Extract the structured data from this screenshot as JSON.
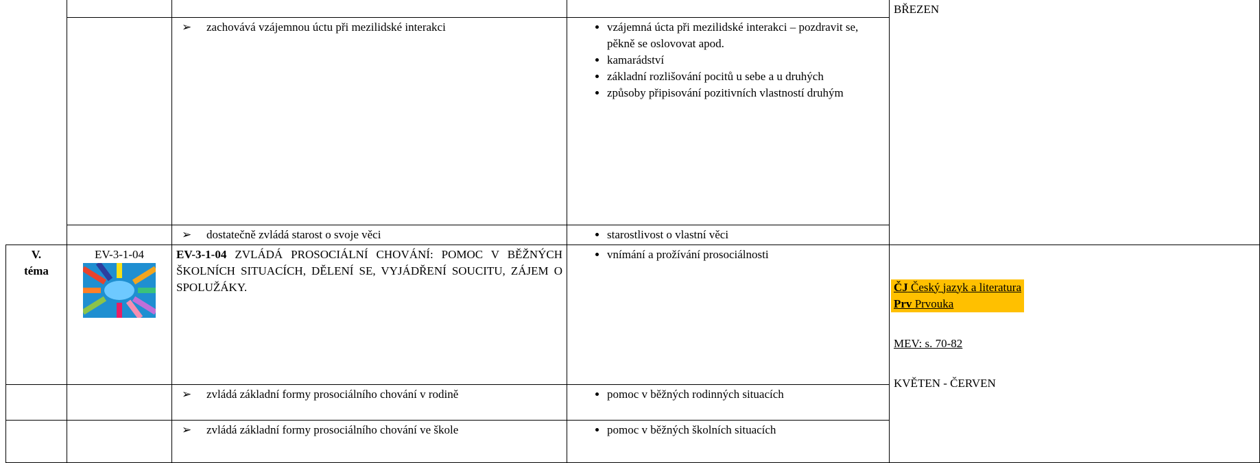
{
  "previous_months": "BŘEZEN",
  "rows": [
    {
      "outcome": "zachovává vzájemnou úctu při mezilidské interakci",
      "topics": [
        "vzájemná úcta při mezilidské interakci – pozdravit se, pěkně se oslovovat apod.",
        "kamarádství",
        "základní rozlišování pocitů u sebe a u druhých",
        "způsoby připisování pozitivních vlastností druhým"
      ]
    },
    {
      "outcome": "dostatečně zvládá starost o svoje věci",
      "topics": [
        "starostlivost o vlastní věci"
      ]
    }
  ],
  "theme": {
    "number": "V.",
    "word": "téma",
    "code": "EV-3-1-04",
    "outcome_code": "EV-3-1-04",
    "outcome_text": "ZVLÁDÁ PROSOCIÁLNÍ CHOVÁNÍ: POMOC V BĚŽNÝCH ŠKOLNÍCH SITUACÍCH, DĚLENÍ SE, VYJÁDŘENÍ SOUCITU, ZÁJEM O SPOLUŽÁKY.",
    "topics": [
      "vnímání a prožívání prosociálnosti"
    ],
    "subrows": [
      {
        "outcome": "zvládá základní formy prosociálního chování v rodině",
        "topics": [
          "pomoc v běžných rodinných situacích"
        ]
      },
      {
        "outcome": "zvládá základní formy prosociálního chování ve škole",
        "topics": [
          "pomoc v běžných školních situacích"
        ]
      }
    ],
    "links": [
      {
        "abbr": "ČJ",
        "name": "Český jazyk a literatura"
      },
      {
        "abbr": "Prv",
        "name": "Prvouka"
      }
    ],
    "reference": "MEV: s. 70-82",
    "months": "KVĚTEN - ČERVEN"
  }
}
